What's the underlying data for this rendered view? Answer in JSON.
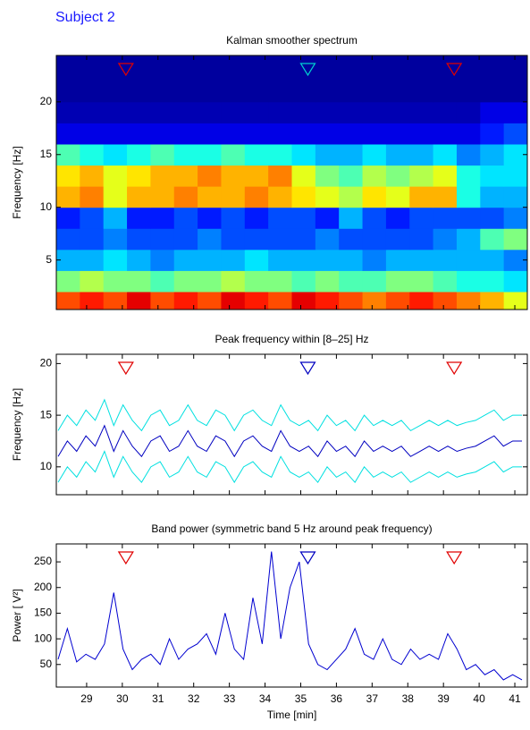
{
  "title": "Subject 2",
  "chart_data": [
    {
      "type": "heatmap",
      "title": "Kalman smoother spectrum",
      "ylabel": "Frequency [Hz]",
      "colormap": "jet",
      "xlim": [
        28.15,
        41.35
      ],
      "ylim": [
        0.3,
        24.4
      ],
      "xticks": [
        29,
        30,
        31,
        32,
        33,
        34,
        35,
        36,
        37,
        38,
        39,
        40,
        41
      ],
      "yticks": [
        5,
        10,
        15,
        20
      ],
      "x_edges": [
        28.15,
        28.81,
        29.47,
        30.13,
        30.79,
        31.45,
        32.11,
        32.77,
        33.43,
        34.09,
        34.75,
        35.41,
        36.07,
        36.73,
        37.39,
        38.05,
        38.71,
        39.37,
        40.03,
        40.69,
        41.35
      ],
      "y_edges": [
        0.3,
        2,
        4,
        6,
        8,
        10,
        12,
        14,
        16,
        18,
        20,
        22,
        24.4
      ],
      "z": [
        [
          0.8,
          0.85,
          0.8,
          0.9,
          0.8,
          0.85,
          0.8,
          0.9,
          0.85,
          0.8,
          0.9,
          0.85,
          0.8,
          0.75,
          0.8,
          0.85,
          0.8,
          0.75,
          0.7,
          0.6
        ],
        [
          0.5,
          0.55,
          0.5,
          0.5,
          0.45,
          0.5,
          0.5,
          0.55,
          0.5,
          0.5,
          0.45,
          0.5,
          0.45,
          0.45,
          0.5,
          0.5,
          0.45,
          0.4,
          0.4,
          0.35
        ],
        [
          0.3,
          0.3,
          0.35,
          0.3,
          0.25,
          0.3,
          0.3,
          0.3,
          0.35,
          0.3,
          0.3,
          0.3,
          0.3,
          0.25,
          0.3,
          0.3,
          0.3,
          0.3,
          0.3,
          0.25
        ],
        [
          0.2,
          0.2,
          0.25,
          0.2,
          0.2,
          0.2,
          0.25,
          0.2,
          0.2,
          0.2,
          0.2,
          0.25,
          0.2,
          0.2,
          0.2,
          0.2,
          0.25,
          0.3,
          0.45,
          0.5
        ],
        [
          0.15,
          0.2,
          0.3,
          0.15,
          0.15,
          0.2,
          0.15,
          0.2,
          0.15,
          0.2,
          0.2,
          0.15,
          0.3,
          0.2,
          0.15,
          0.2,
          0.2,
          0.2,
          0.2,
          0.25
        ],
        [
          0.7,
          0.75,
          0.6,
          0.7,
          0.7,
          0.75,
          0.7,
          0.7,
          0.75,
          0.7,
          0.65,
          0.6,
          0.55,
          0.65,
          0.6,
          0.7,
          0.7,
          0.4,
          0.3,
          0.3
        ],
        [
          0.65,
          0.7,
          0.6,
          0.65,
          0.7,
          0.7,
          0.75,
          0.7,
          0.7,
          0.75,
          0.6,
          0.5,
          0.45,
          0.55,
          0.5,
          0.55,
          0.6,
          0.4,
          0.35,
          0.35
        ],
        [
          0.45,
          0.4,
          0.35,
          0.4,
          0.45,
          0.4,
          0.4,
          0.45,
          0.4,
          0.4,
          0.35,
          0.3,
          0.3,
          0.35,
          0.3,
          0.3,
          0.35,
          0.25,
          0.3,
          0.35
        ],
        [
          0.1,
          0.1,
          0.1,
          0.1,
          0.1,
          0.1,
          0.1,
          0.1,
          0.1,
          0.1,
          0.1,
          0.1,
          0.1,
          0.1,
          0.1,
          0.1,
          0.1,
          0.1,
          0.15,
          0.2
        ],
        [
          0.05,
          0.05,
          0.05,
          0.05,
          0.05,
          0.05,
          0.05,
          0.05,
          0.05,
          0.05,
          0.05,
          0.05,
          0.05,
          0.05,
          0.05,
          0.05,
          0.05,
          0.05,
          0.1,
          0.1
        ],
        [
          0.03,
          0.03,
          0.03,
          0.03,
          0.03,
          0.03,
          0.03,
          0.03,
          0.03,
          0.03,
          0.03,
          0.03,
          0.03,
          0.03,
          0.03,
          0.03,
          0.03,
          0.03,
          0.03,
          0.03
        ],
        [
          0.03,
          0.03,
          0.03,
          0.03,
          0.03,
          0.03,
          0.03,
          0.03,
          0.03,
          0.03,
          0.03,
          0.03,
          0.03,
          0.03,
          0.03,
          0.03,
          0.03,
          0.03,
          0.03,
          0.03
        ]
      ],
      "markers": [
        {
          "x": 30.1,
          "color": "#e00000"
        },
        {
          "x": 35.2,
          "color": "#00d0d0"
        },
        {
          "x": 39.3,
          "color": "#e00000"
        }
      ]
    },
    {
      "type": "line",
      "title": "Peak frequency within [8–25] Hz",
      "ylabel": "Frequency [Hz]",
      "xlim": [
        28.15,
        41.35
      ],
      "ylim": [
        7.3,
        20.9
      ],
      "xticks": [
        29,
        30,
        31,
        32,
        33,
        34,
        35,
        36,
        37,
        38,
        39,
        40,
        41
      ],
      "yticks": [
        10,
        15,
        20
      ],
      "x": [
        28.2,
        28.46,
        28.72,
        28.98,
        29.24,
        29.5,
        29.76,
        30.02,
        30.28,
        30.54,
        30.8,
        31.06,
        31.32,
        31.58,
        31.84,
        32.1,
        32.36,
        32.62,
        32.88,
        33.14,
        33.4,
        33.66,
        33.92,
        34.18,
        34.44,
        34.7,
        34.96,
        35.22,
        35.48,
        35.74,
        36,
        36.26,
        36.52,
        36.78,
        37.04,
        37.3,
        37.56,
        37.82,
        38.08,
        38.34,
        38.6,
        38.86,
        39.12,
        39.38,
        39.64,
        39.9,
        40.16,
        40.42,
        40.68,
        40.94,
        41.2
      ],
      "series": [
        {
          "color": "#00e0e0",
          "values": [
            13.5,
            15,
            14,
            15.5,
            14.5,
            16.5,
            14,
            16,
            14.5,
            13.5,
            15,
            15.5,
            14,
            14.5,
            16,
            14.5,
            14,
            15.5,
            15,
            13.5,
            15,
            15.5,
            14.5,
            14,
            16,
            14.5,
            14,
            14.5,
            13.5,
            15,
            14,
            14.5,
            13.5,
            15,
            14,
            14.5,
            14,
            14.5,
            13.5,
            14,
            14.5,
            14,
            14.5,
            14,
            14.3,
            14.5,
            15,
            15.5,
            14.5,
            15,
            15
          ]
        },
        {
          "color": "#0000c0",
          "values": [
            11,
            12.5,
            11.5,
            13,
            12,
            14,
            11.5,
            13.5,
            12,
            11,
            12.5,
            13,
            11.5,
            12,
            13.5,
            12,
            11.5,
            13,
            12.5,
            11,
            12.5,
            13,
            12,
            11.5,
            13.5,
            12,
            11.5,
            12,
            11,
            12.5,
            11.5,
            12,
            11,
            12.5,
            11.5,
            12,
            11.5,
            12,
            11,
            11.5,
            12,
            11.5,
            12,
            11.5,
            11.8,
            12,
            12.5,
            13,
            12,
            12.5,
            12.5
          ]
        },
        {
          "color": "#00e0e0",
          "values": [
            8.5,
            10,
            9,
            10.5,
            9.5,
            11.5,
            9,
            11,
            9.5,
            8.5,
            10,
            10.5,
            9,
            9.5,
            11,
            9.5,
            9,
            10.5,
            10,
            8.5,
            10,
            10.5,
            9.5,
            9,
            11,
            9.5,
            9,
            9.5,
            8.5,
            10,
            9,
            9.5,
            8.5,
            10,
            9,
            9.5,
            9,
            9.5,
            8.5,
            9,
            9.5,
            9,
            9.5,
            9,
            9.3,
            9.5,
            10,
            10.5,
            9.5,
            10,
            10
          ]
        }
      ],
      "markers": [
        {
          "x": 30.1,
          "color": "#e00000"
        },
        {
          "x": 35.2,
          "color": "#0000c0"
        },
        {
          "x": 39.3,
          "color": "#e00000"
        }
      ]
    },
    {
      "type": "line",
      "title": "Band power (symmetric band 5 Hz around peak frequency)",
      "ylabel": "Power [  V²]",
      "xlabel": "Time [min]",
      "xlim": [
        28.15,
        41.35
      ],
      "ylim": [
        6,
        285
      ],
      "xticks": [
        29,
        30,
        31,
        32,
        33,
        34,
        35,
        36,
        37,
        38,
        39,
        40,
        41
      ],
      "yticks": [
        50,
        100,
        150,
        200,
        250
      ],
      "x": [
        28.2,
        28.46,
        28.72,
        28.98,
        29.24,
        29.5,
        29.76,
        30.02,
        30.28,
        30.54,
        30.8,
        31.06,
        31.32,
        31.58,
        31.84,
        32.1,
        32.36,
        32.62,
        32.88,
        33.14,
        33.4,
        33.66,
        33.92,
        34.18,
        34.44,
        34.7,
        34.96,
        35.22,
        35.48,
        35.74,
        36,
        36.26,
        36.52,
        36.78,
        37.04,
        37.3,
        37.56,
        37.82,
        38.08,
        38.34,
        38.6,
        38.86,
        39.12,
        39.38,
        39.64,
        39.9,
        40.16,
        40.42,
        40.68,
        40.94,
        41.2
      ],
      "series": [
        {
          "color": "#0000d0",
          "values": [
            60,
            120,
            55,
            70,
            60,
            90,
            190,
            80,
            40,
            60,
            70,
            50,
            100,
            60,
            80,
            90,
            110,
            70,
            150,
            80,
            60,
            180,
            90,
            270,
            100,
            200,
            250,
            90,
            50,
            40,
            60,
            80,
            120,
            70,
            60,
            100,
            60,
            50,
            80,
            60,
            70,
            60,
            110,
            80,
            40,
            50,
            30,
            40,
            20,
            30,
            20
          ]
        }
      ],
      "markers": [
        {
          "x": 30.1,
          "color": "#e00000"
        },
        {
          "x": 35.2,
          "color": "#0000c0"
        },
        {
          "x": 39.3,
          "color": "#e00000"
        }
      ]
    }
  ]
}
